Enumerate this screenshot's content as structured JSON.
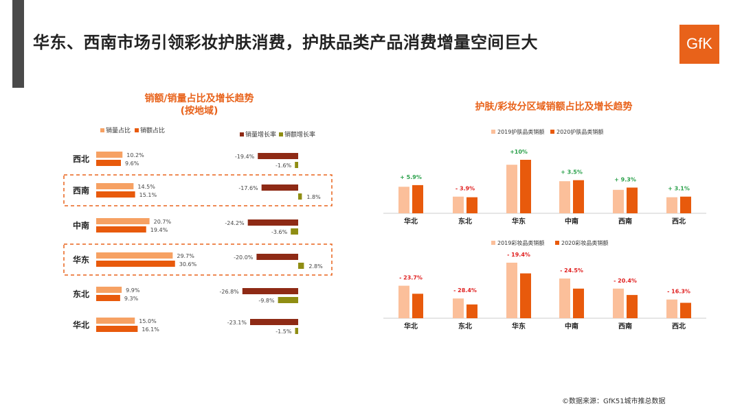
{
  "page": {
    "title": "华东、西南市场引领彩妆护肤消费，护肤品类产品消费增量空间巨大",
    "logo_text": "GfK",
    "source": "©数据来源：GfK51城市推总数据"
  },
  "colors": {
    "light_orange": "#f6a163",
    "dark_orange": "#e85a0c",
    "brown": "#8e2a15",
    "olive": "#8f8d13",
    "peach": "#fbbf9a",
    "title_orange": "#e8621a",
    "green": "#2aa04a",
    "red": "#e02020",
    "dash": "#e8621a",
    "axis": "#cccccc"
  },
  "chart_data": [
    {
      "type": "bar",
      "orientation": "horizontal",
      "title": "销额/销量占比及增长趋势",
      "subtitle": "(按地域)",
      "categories": [
        "西北",
        "西南",
        "中南",
        "华东",
        "东北",
        "华北"
      ],
      "highlighted": [
        "西南",
        "华东"
      ],
      "share_legend": [
        "销量占比",
        "销额占比"
      ],
      "growth_legend": [
        "销量增长率",
        "销额增长率"
      ],
      "series": [
        {
          "name": "销量占比",
          "values": [
            10.2,
            14.5,
            20.7,
            29.7,
            9.9,
            15.0
          ],
          "labels": [
            "10.2%",
            "14.5%",
            "20.7%",
            "29.7%",
            "9.9%",
            "15.0%"
          ]
        },
        {
          "name": "销额占比",
          "values": [
            9.6,
            15.1,
            19.4,
            30.6,
            9.3,
            16.1
          ],
          "labels": [
            "9.6%",
            "15.1%",
            "19.4%",
            "30.6%",
            "9.3%",
            "16.1%"
          ]
        },
        {
          "name": "销量增长率",
          "values": [
            -19.4,
            -17.6,
            -24.2,
            -20.0,
            -26.8,
            -23.1
          ],
          "labels": [
            "-19.4%",
            "-17.6%",
            "-24.2%",
            "-20.0%",
            "-26.8%",
            "-23.1%"
          ]
        },
        {
          "name": "销额增长率",
          "values": [
            -1.6,
            1.8,
            -3.6,
            2.8,
            -9.8,
            -1.5
          ],
          "labels": [
            "-1.6%",
            "1.8%",
            "-3.6%",
            "2.8%",
            "-9.8%",
            "-1.5%"
          ]
        }
      ]
    },
    {
      "type": "bar",
      "title": "护肤/彩妆分区域销额占比及增长趋势",
      "categories": [
        "华北",
        "东北",
        "华东",
        "中南",
        "西南",
        "西北"
      ],
      "panels": [
        {
          "legend": [
            "2019护肤品类销额",
            "2020护肤品类销额"
          ],
          "series": [
            {
              "name": "2019护肤品类销额",
              "values": [
                12.9,
                8.1,
                23.6,
                15.6,
                11.4,
                7.8
              ]
            },
            {
              "name": "2020护肤品类销额",
              "values": [
                13.7,
                7.8,
                26.0,
                16.1,
                12.5,
                8.1
              ]
            }
          ],
          "growth_labels": [
            "+ 5.9%",
            "- 3.9%",
            "+10%",
            "+ 3.5%",
            "+ 9.3%",
            "+ 3.1%"
          ],
          "growth_sign": [
            "+",
            "-",
            "+",
            "+",
            "+",
            "+"
          ]
        },
        {
          "legend": [
            "2019彩妆品类销额",
            "2020彩妆品类销额"
          ],
          "series": [
            {
              "name": "2019彩妆品类销额",
              "values": [
                15.8,
                9.6,
                27.0,
                19.3,
                14.4,
                9.1
              ]
            },
            {
              "name": "2020彩妆品类销额",
              "values": [
                11.9,
                6.7,
                21.8,
                14.4,
                11.3,
                7.5
              ]
            }
          ],
          "growth_labels": [
            "- 23.7%",
            "- 28.4%",
            "- 19.4%",
            "- 24.5%",
            "- 20.4%",
            "- 16.3%"
          ],
          "growth_sign": [
            "-",
            "-",
            "-",
            "-",
            "-",
            "-"
          ]
        }
      ]
    }
  ]
}
